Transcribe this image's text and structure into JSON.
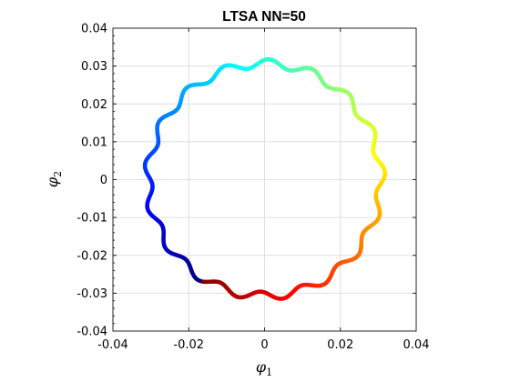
{
  "chart_data": {
    "type": "scatter",
    "title": "LTSA NN=50",
    "xlabel": {
      "symbol": "φ",
      "subscript": "1"
    },
    "ylabel": {
      "symbol": "φ",
      "subscript": "2"
    },
    "xlim": [
      -0.04,
      0.04
    ],
    "ylim": [
      -0.04,
      0.04
    ],
    "x_ticks": [
      -0.04,
      -0.02,
      0,
      0.02,
      0.04
    ],
    "x_tick_labels": [
      "-0.04",
      "-0.02",
      "0",
      "0.02",
      "0.04"
    ],
    "y_ticks": [
      -0.04,
      -0.03,
      -0.02,
      -0.01,
      0,
      0.01,
      0.02,
      0.03,
      0.04
    ],
    "y_tick_labels": [
      "-0.04",
      "-0.03",
      "-0.02",
      "-0.01",
      "0",
      "0.01",
      "0.02",
      "0.03",
      "0.04"
    ],
    "grid": true,
    "colormap": "jet",
    "series": [
      {
        "shape": "circle",
        "center": [
          0,
          0
        ],
        "radius": 0.0307,
        "wobble_amplitude": 0.0011,
        "wobble_cycles": 17,
        "color_start_angle_deg": -122,
        "color_order": "counterclockwise from dark red through yellow, green, cyan, blue to dark blue",
        "point_count": 720
      }
    ]
  }
}
